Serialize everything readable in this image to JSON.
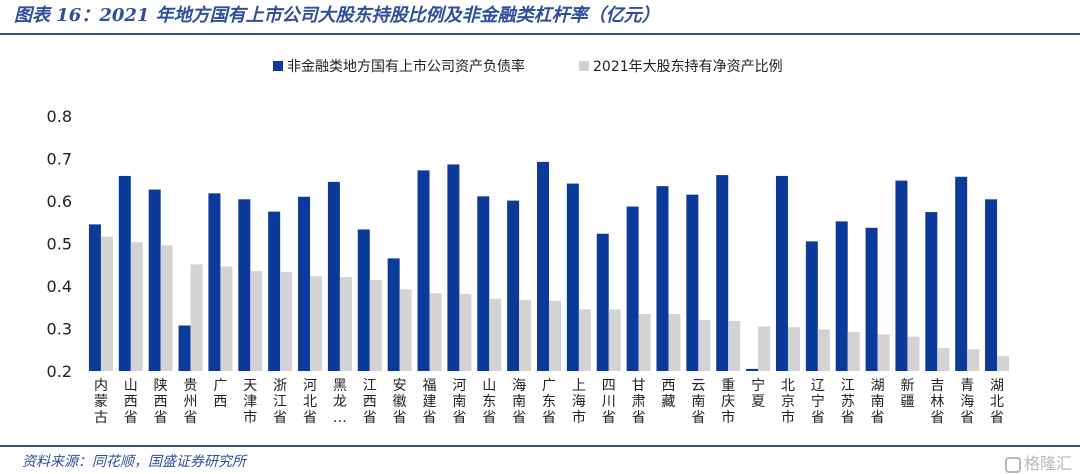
{
  "header": {
    "title": "图表 16：2021 年地方国有上市公司大股东持股比例及非金融类杠杆率（亿元）"
  },
  "footer": {
    "source": "资料来源：同花顺，国盛证券研究所",
    "watermark": "格隆汇"
  },
  "colors": {
    "series1": "#0c3a9a",
    "series2": "#d3d3d3",
    "title": "#2f4f9a"
  },
  "chart_data": {
    "type": "bar",
    "title": "",
    "xlabel": "",
    "ylabel": "",
    "ylim": [
      0.2,
      0.8
    ],
    "yticks": [
      "0.2",
      "0.3",
      "0.4",
      "0.5",
      "0.6",
      "0.7",
      "0.8"
    ],
    "grid": false,
    "legend_position": "top-center",
    "categories": [
      "内蒙古",
      "山西省",
      "陕西省",
      "贵州省",
      "广西",
      "天津市",
      "浙江省",
      "河北省",
      "黑龙…",
      "江西省",
      "安徽省",
      "福建省",
      "河南省",
      "山东省",
      "海南省",
      "广东省",
      "上海市",
      "四川省",
      "甘肃省",
      "西藏",
      "云南省",
      "重庆市",
      "宁夏",
      "北京市",
      "辽宁省",
      "江苏省",
      "湖南省",
      "新疆",
      "吉林省",
      "青海省",
      "湖北省"
    ],
    "series": [
      {
        "name": "非金融类地方国有上市公司资产负债率",
        "values": [
          0.545,
          0.659,
          0.627,
          0.307,
          0.618,
          0.604,
          0.575,
          0.61,
          0.645,
          0.533,
          0.465,
          0.672,
          0.686,
          0.611,
          0.601,
          0.692,
          0.641,
          0.523,
          0.587,
          0.635,
          0.615,
          0.661,
          0.205,
          0.659,
          0.505,
          0.552,
          0.537,
          0.648,
          0.574,
          0.657,
          0.604
        ]
      },
      {
        "name": "2021年大股东持有净资产比例",
        "values": [
          0.516,
          0.503,
          0.496,
          0.451,
          0.446,
          0.435,
          0.433,
          0.423,
          0.421,
          0.414,
          0.392,
          0.383,
          0.381,
          0.37,
          0.367,
          0.365,
          0.345,
          0.345,
          0.334,
          0.334,
          0.32,
          0.318,
          0.305,
          0.303,
          0.298,
          0.292,
          0.286,
          0.281,
          0.254,
          0.251,
          0.235
        ]
      }
    ]
  }
}
